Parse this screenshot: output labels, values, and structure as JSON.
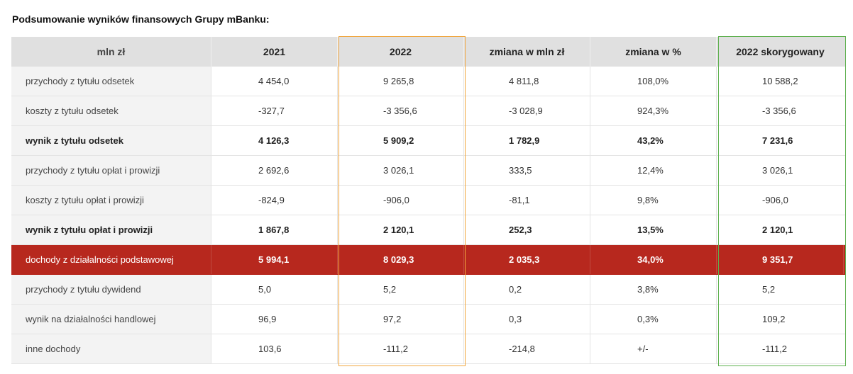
{
  "title": "Podsumowanie wyników finansowych Grupy mBanku:",
  "colors": {
    "highlight_row": "#b7281e",
    "frame_2022": "#f0a63e",
    "frame_2022_adjusted": "#5db04e",
    "header_bg": "#e0e0e0"
  },
  "table": {
    "headers": [
      "mln zł",
      "2021",
      "2022",
      "zmiana w mln zł",
      "zmiana w %",
      "2022 skorygowany"
    ],
    "rows": [
      {
        "label": "przychody z tytułu odsetek",
        "cells": [
          "4 454,0",
          "9 265,8",
          "4 811,8",
          "108,0%",
          "10 588,2"
        ]
      },
      {
        "label": "koszty z tytułu odsetek",
        "cells": [
          "-327,7",
          "-3 356,6",
          "-3 028,9",
          "924,3%",
          "-3 356,6"
        ]
      },
      {
        "label": "wynik z tytułu odsetek",
        "cells": [
          "4 126,3",
          "5 909,2",
          "1 782,9",
          "43,2%",
          "7 231,6"
        ]
      },
      {
        "label": "przychody z tytułu opłat i prowizji",
        "cells": [
          "2 692,6",
          "3 026,1",
          "333,5",
          "12,4%",
          "3 026,1"
        ]
      },
      {
        "label": "koszty z tytułu opłat i prowizji",
        "cells": [
          "-824,9",
          "-906,0",
          "-81,1",
          "9,8%",
          "-906,0"
        ]
      },
      {
        "label": "wynik z tytułu opłat i prowizji",
        "cells": [
          "1 867,8",
          "2 120,1",
          "252,3",
          "13,5%",
          "2 120,1"
        ]
      },
      {
        "label": "dochody z działalności podstawowej",
        "cells": [
          "5 994,1",
          "8 029,3",
          "2 035,3",
          "34,0%",
          "9 351,7"
        ]
      },
      {
        "label": "przychody z tytułu dywidend",
        "cells": [
          "5,0",
          "5,2",
          "0,2",
          "3,8%",
          "5,2"
        ]
      },
      {
        "label": "wynik na działalności handlowej",
        "cells": [
          "96,9",
          "97,2",
          "0,3",
          "0,3%",
          "109,2"
        ]
      },
      {
        "label": "inne dochody",
        "cells": [
          "103,6",
          "-111,2",
          "-214,8",
          "+/-",
          "-111,2"
        ]
      }
    ]
  }
}
